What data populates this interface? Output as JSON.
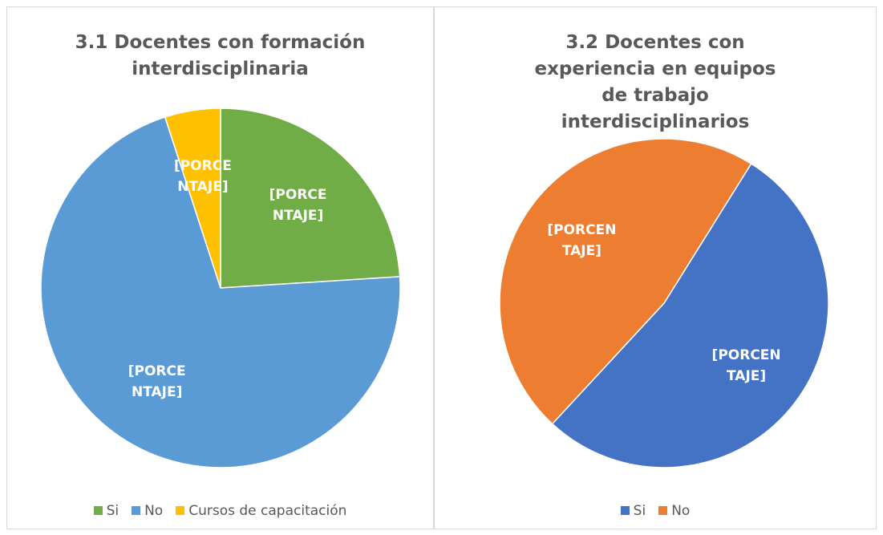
{
  "chart_data": [
    {
      "type": "pie",
      "title": "3.1 Docentes con formación interdisciplinaria",
      "categories": [
        "Si",
        "No",
        "Cursos de capacitación"
      ],
      "values": [
        24,
        71,
        5
      ],
      "value_labels": [
        "[PORCENTAJE]",
        "[PORCENTAJE]",
        "[PORCENTAJE]"
      ],
      "colors": [
        "#70ad47",
        "#5b9bd5",
        "#ffc000"
      ],
      "legend": "bottom"
    },
    {
      "type": "pie",
      "title": "3.2 Docentes con experiencia en equipos de trabajo interdisciplinarios",
      "categories": [
        "Si",
        "No"
      ],
      "values": [
        53,
        47
      ],
      "value_labels": [
        "[PORCENTAJE]",
        "[PORCENTAJE]"
      ],
      "colors": [
        "#4472c4",
        "#ed7d31"
      ],
      "legend": "bottom"
    }
  ]
}
